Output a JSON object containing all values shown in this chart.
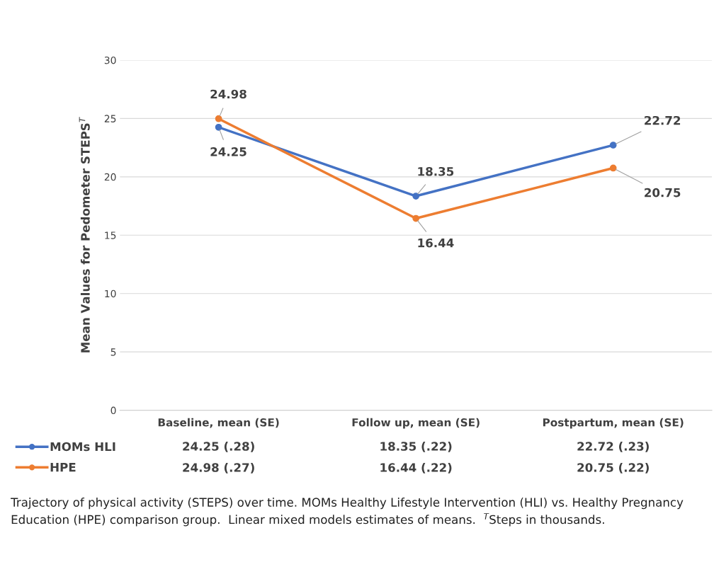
{
  "chart_data": {
    "type": "line",
    "categories": [
      "Baseline, mean (SE)",
      "Follow up, mean (SE)",
      "Postpartum, mean (SE)"
    ],
    "ylabel": "Mean Values for Pedometer STEPS$^{T}$",
    "ylim": [
      0,
      30
    ],
    "yticks": [
      0,
      5,
      10,
      15,
      20,
      25,
      30
    ],
    "grid": "y",
    "marker": "circle",
    "line_style": "solid",
    "legend": "bottom",
    "series": [
      {
        "name": "MOMs HLI",
        "color": "#4472c4",
        "values": [
          24.25,
          18.35,
          22.72
        ],
        "value_labels": [
          "24.25 (.28)",
          "18.35 (.22)",
          "22.72 (.23)"
        ]
      },
      {
        "name": "HPE",
        "color": "#ed7d31",
        "values": [
          24.98,
          16.44,
          20.75
        ],
        "value_labels": [
          "24.98 (.27)",
          "16.44 (.22)",
          "20.75 (.22)"
        ]
      }
    ],
    "annotations": [
      {
        "text": "24.25",
        "x": "Baseline, mean (SE)",
        "y": 24.25
      },
      {
        "text": "24.98",
        "x": "Baseline, mean (SE)",
        "y": 24.98
      },
      {
        "text": "18.35",
        "x": "Follow up, mean (SE)",
        "y": 18.35
      },
      {
        "text": "16.44",
        "x": "Follow up, mean (SE)",
        "y": 16.44
      },
      {
        "text": "22.72",
        "x": "Postpartum, mean (SE)",
        "y": 22.72
      },
      {
        "text": "20.75",
        "x": "Postpartum, mean (SE)",
        "y": 20.75
      },
      "Trajectory of physical activity (STEPS) over time. MOMs Healthy Lifestyle Intervention (HLI) vs. Healthy Pregnancy Education (HPE) comparison group.  Linear mixed models estimates of means.  $^{T}$Steps in thousands."
    ]
  }
}
